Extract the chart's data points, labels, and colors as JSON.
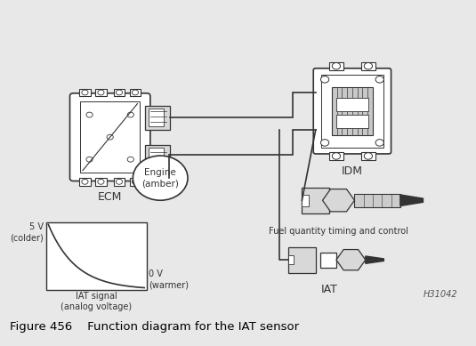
{
  "bg_color": "#e8e8e8",
  "diagram_bg": "#ffffff",
  "border_color": "#444444",
  "title": "Figure 456    Function diagram for the IAT sensor",
  "title_fontsize": 10,
  "label_ecm": "ECM",
  "label_idm": "IDM",
  "label_iat": "IAT",
  "label_engine": "Engine\n(amber)",
  "label_fuel": "Fuel quantity timing and control",
  "label_5v": "5 V\n(colder)",
  "label_0v": "0 V\n(warmer)",
  "label_iat_signal": "IAT signal\n(analog voltage)",
  "label_h31042": "H31042",
  "line_color": "#333333",
  "fill_light": "#d8d8d8",
  "fill_mid": "#bbbbbb"
}
